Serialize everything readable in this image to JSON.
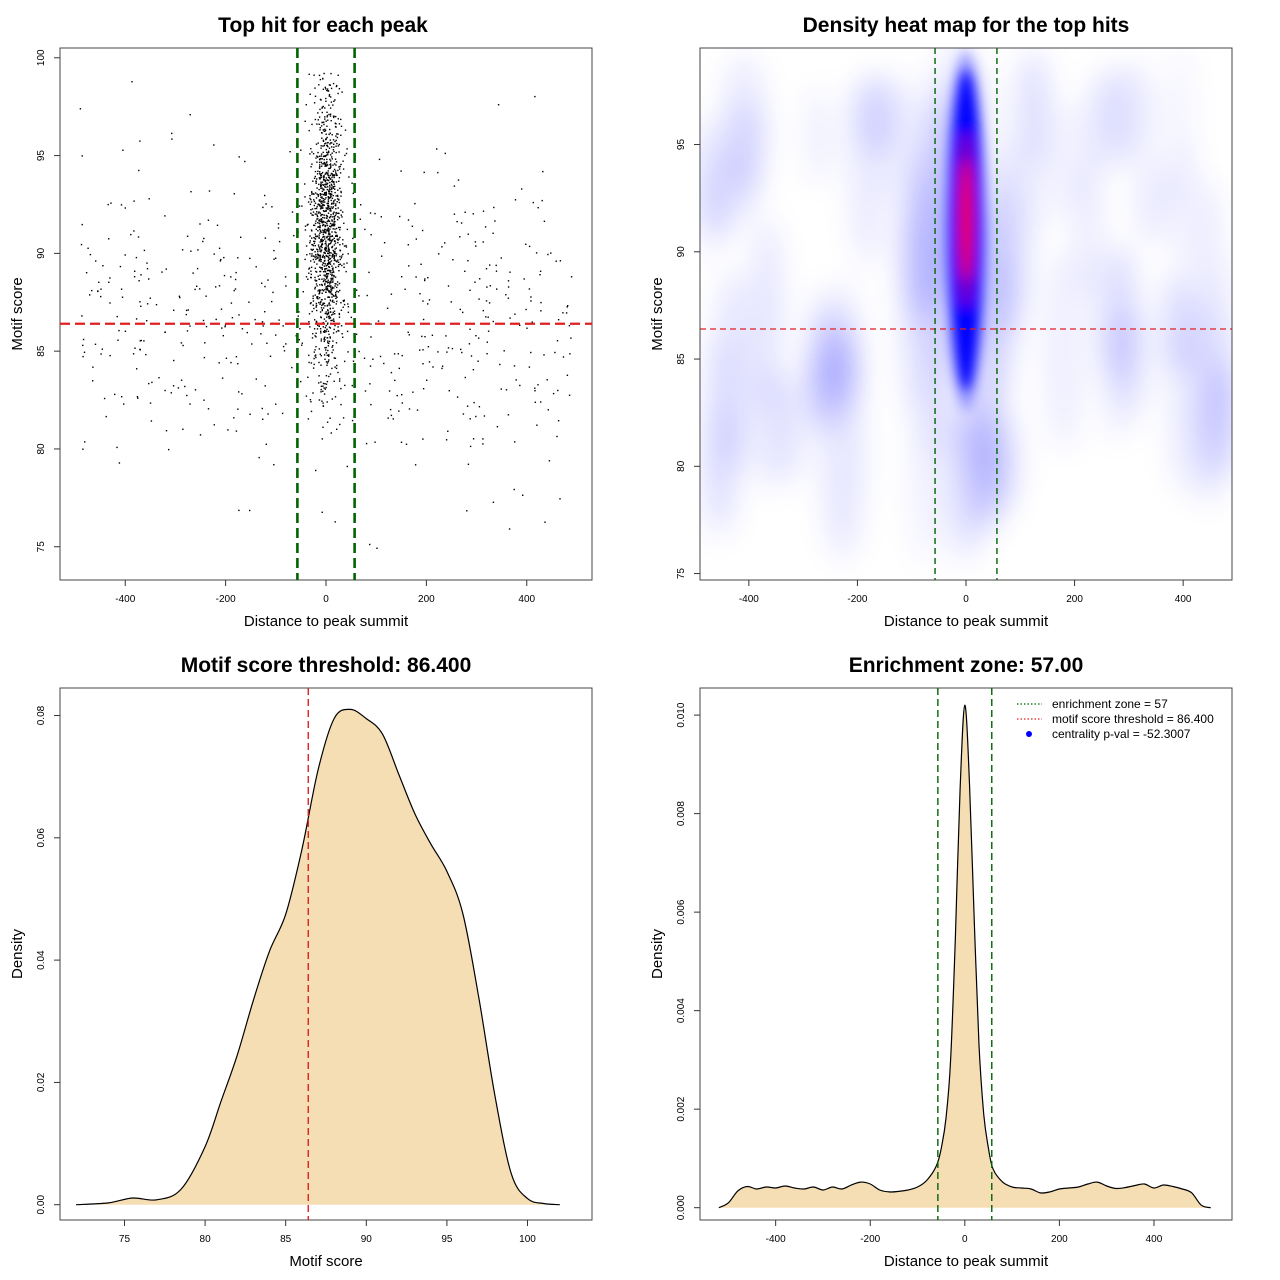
{
  "colors": {
    "threshold_line": "#e02020",
    "zone_line": "#006400",
    "density_fill": "#f5deb3",
    "scatter_point": "#000000",
    "heat_low": "#ffffff",
    "heat_mid": "#0000ff",
    "heat_high": "#ff0000",
    "legend_dot": "#0000ff"
  },
  "chart_data": [
    {
      "id": "scatter",
      "type": "scatter",
      "title": "Top hit for each peak",
      "xlabel": "Distance to peak summit",
      "ylabel": "Motif score",
      "xlim": [
        -530,
        530
      ],
      "ylim": [
        73.3,
        100.5
      ],
      "xticks": [
        -400,
        -200,
        0,
        200,
        400
      ],
      "yticks": [
        75,
        80,
        85,
        90,
        95,
        100
      ],
      "threshold_y": 86.4,
      "zone_x": [
        -57,
        57
      ],
      "points_summary": {
        "background_count": 560,
        "background_x_range": [
          -490,
          490
        ],
        "background_score_center": 86.5,
        "background_score_sd": 4.0,
        "central_count": 1300,
        "central_x_sd": 16,
        "central_score_center": 91,
        "central_score_sd": 3.6,
        "score_max": 99.4
      }
    },
    {
      "id": "heatmap",
      "type": "heatmap",
      "title": "Density heat map for the top hits",
      "xlabel": "Distance to peak summit",
      "ylabel": "Motif score",
      "xlim": [
        -490,
        490
      ],
      "ylim": [
        74.7,
        99.5
      ],
      "xticks": [
        -400,
        -200,
        0,
        200,
        400
      ],
      "yticks": [
        75,
        80,
        85,
        90,
        95
      ],
      "threshold_y": 86.4,
      "zone_x": [
        -57,
        57
      ],
      "hotspot": {
        "x": 0,
        "y": 91.5
      },
      "hotspot_extent": {
        "x_halfwidth": 30,
        "y_range": [
          83.5,
          98.5
        ]
      }
    },
    {
      "id": "score_density",
      "type": "area",
      "title": "Motif score threshold: 86.400",
      "xlabel": "Motif score",
      "ylabel": "Density",
      "xlim": [
        71,
        104
      ],
      "ylim": [
        -0.0025,
        0.0845
      ],
      "xticks": [
        75,
        80,
        85,
        90,
        95,
        100
      ],
      "yticks": [
        0.0,
        0.02,
        0.04,
        0.06,
        0.08
      ],
      "ytick_labels": [
        "0.00",
        "0.02",
        "0.04",
        "0.06",
        "0.08"
      ],
      "threshold_x": 86.4,
      "x": [
        72,
        74,
        75.5,
        77,
        78.5,
        80,
        81,
        82,
        83,
        84,
        85,
        86,
        87,
        88,
        89,
        90,
        91,
        92,
        93,
        94,
        95,
        96,
        97,
        98,
        99,
        100,
        101,
        102
      ],
      "y": [
        0.0,
        0.0003,
        0.0011,
        0.0008,
        0.0025,
        0.0095,
        0.017,
        0.0245,
        0.0335,
        0.0415,
        0.0475,
        0.058,
        0.071,
        0.0795,
        0.081,
        0.0795,
        0.077,
        0.0705,
        0.064,
        0.059,
        0.0545,
        0.0475,
        0.0335,
        0.0175,
        0.005,
        0.001,
        0.0002,
        0.0
      ]
    },
    {
      "id": "distance_density",
      "type": "area",
      "title": "Enrichment zone: 57.00",
      "xlabel": "Distance to peak summit",
      "ylabel": "Density",
      "xlim": [
        -560,
        565
      ],
      "ylim": [
        -0.00025,
        0.01055
      ],
      "xticks": [
        -400,
        -200,
        0,
        200,
        400
      ],
      "yticks": [
        0.0,
        0.002,
        0.004,
        0.006,
        0.008,
        0.01
      ],
      "ytick_labels": [
        "0.000",
        "0.002",
        "0.004",
        "0.006",
        "0.008",
        "0.010"
      ],
      "zone_x": [
        -57,
        57
      ],
      "x": [
        -520,
        -500,
        -480,
        -460,
        -440,
        -420,
        -400,
        -380,
        -360,
        -340,
        -320,
        -300,
        -280,
        -260,
        -240,
        -220,
        -200,
        -180,
        -160,
        -140,
        -120,
        -100,
        -80,
        -60,
        -50,
        -40,
        -30,
        -20,
        -10,
        0,
        10,
        20,
        30,
        40,
        50,
        60,
        80,
        100,
        120,
        140,
        160,
        180,
        200,
        220,
        240,
        260,
        280,
        300,
        320,
        340,
        360,
        380,
        400,
        420,
        440,
        460,
        480,
        500,
        520
      ],
      "y": [
        0.0,
        0.0001,
        0.00034,
        0.00043,
        0.00038,
        0.00042,
        0.0004,
        0.00044,
        0.0004,
        0.00038,
        0.00042,
        0.00036,
        0.00042,
        0.00038,
        0.00046,
        0.00052,
        0.00048,
        0.00036,
        0.00032,
        0.00033,
        0.00036,
        0.00042,
        0.00056,
        0.00085,
        0.0012,
        0.0018,
        0.003,
        0.0055,
        0.0085,
        0.0102,
        0.0086,
        0.0058,
        0.0033,
        0.0019,
        0.0012,
        0.00078,
        0.00052,
        0.00042,
        0.0004,
        0.00038,
        0.0003,
        0.00032,
        0.00038,
        0.0004,
        0.00042,
        0.00048,
        0.00052,
        0.00044,
        0.00039,
        0.00041,
        0.00045,
        0.00048,
        0.0004,
        0.00046,
        0.00043,
        0.00038,
        0.0003,
        5e-05,
        0.0
      ],
      "legend": [
        {
          "label": "enrichment zone = 57",
          "style": "dotted",
          "color": "#006400"
        },
        {
          "label": "motif score threshold = 86.400",
          "style": "dotted",
          "color": "#e02020"
        },
        {
          "label": "centrality p-val = -52.3007",
          "style": "dot",
          "color": "#0000ff"
        }
      ],
      "legend_position": "top-right"
    }
  ]
}
